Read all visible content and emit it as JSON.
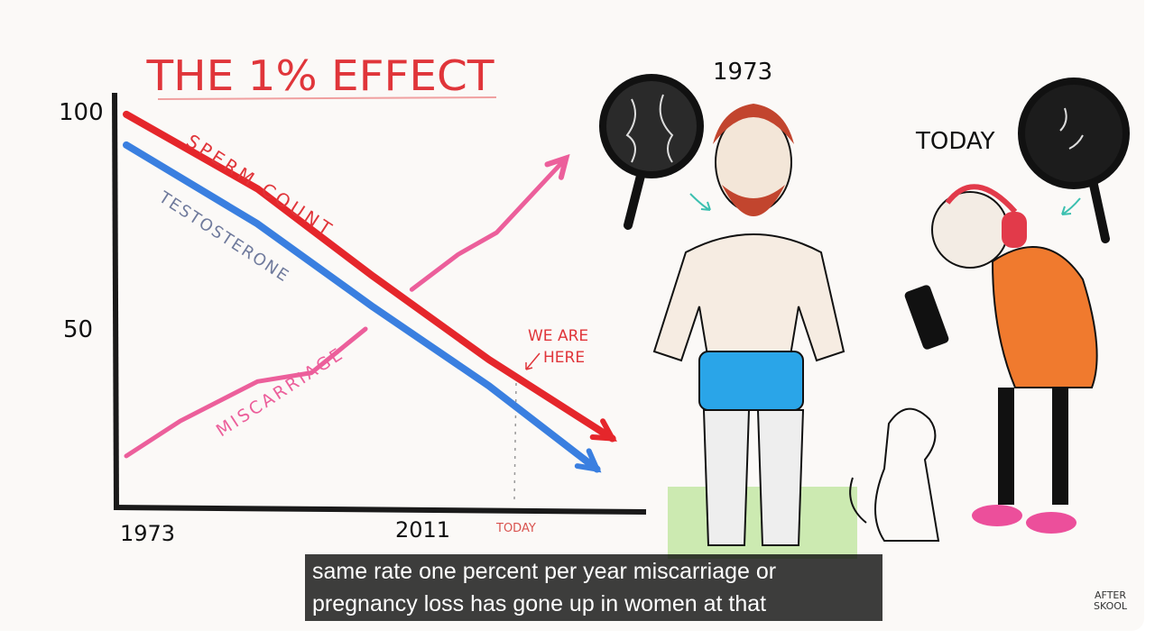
{
  "chart_data": {
    "type": "line",
    "title": "THE 1% EFFECT",
    "xlabel": "",
    "ylabel": "",
    "x_ticks": [
      "1973",
      "2011",
      "TODAY"
    ],
    "y_ticks": [
      "50",
      "100"
    ],
    "ylim": [
      9,
      104
    ],
    "xlim": [
      1973,
      2040
    ],
    "grid": false,
    "series": [
      {
        "name": "SPERM COUNT",
        "color": "#e5262b",
        "x": [
          1973,
          1990,
          2005,
          2020,
          2036
        ],
        "y": [
          99,
          82,
          62,
          43,
          25
        ]
      },
      {
        "name": "TESTOSTERONE",
        "color": "#3a7fe0",
        "x": [
          1973,
          1990,
          2005,
          2020,
          2034
        ],
        "y": [
          92,
          74,
          55,
          37,
          18
        ]
      },
      {
        "name": "MISCARRIAGE",
        "color": "#ec5f9b",
        "x": [
          1973,
          1980,
          1990,
          1997,
          2004
        ],
        "y": [
          21,
          29,
          38,
          40,
          50
        ]
      },
      {
        "name": "",
        "color": "#ec5f9b",
        "x": [
          2010,
          2016,
          2021,
          2030
        ],
        "y": [
          59,
          67,
          72,
          89
        ]
      }
    ],
    "annotations": [
      "WE ARE HERE"
    ]
  },
  "illustration": {
    "label_left": "1973",
    "label_right": "TODAY",
    "logo": "AFTER SKOOL"
  },
  "captions": {
    "line1": "same rate one percent per year miscarriage or",
    "line2": "pregnancy loss has gone up in women at that"
  }
}
